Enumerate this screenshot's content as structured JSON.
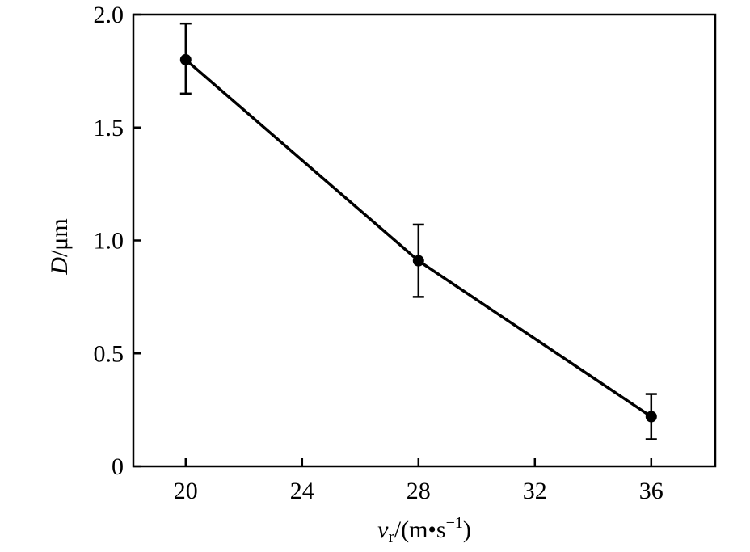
{
  "chart_data": {
    "type": "line",
    "x": [
      20,
      28,
      36
    ],
    "series": [
      {
        "values": [
          1.8,
          0.91,
          0.22
        ],
        "error_upper": [
          1.96,
          1.07,
          0.32
        ],
        "error_lower": [
          1.65,
          0.75,
          0.12
        ]
      }
    ],
    "xlabel": {
      "main": "v",
      "sub": "r",
      "unit_open": "/(m•s",
      "unit_sup": "−1",
      "unit_close": ")"
    },
    "ylabel": {
      "main": "D",
      "unit": "/μm"
    },
    "xlim": [
      18.2,
      38.2
    ],
    "ylim": [
      0,
      2.0
    ],
    "xticks": [
      20,
      24,
      28,
      32,
      36
    ],
    "xtick_labels": [
      "20",
      "24",
      "28",
      "32",
      "36"
    ],
    "yticks": [
      0,
      0.5,
      1.0,
      1.5,
      2.0
    ],
    "ytick_labels": [
      "0",
      "0.5",
      "1.0",
      "1.5",
      "2.0"
    ],
    "grid": false,
    "legend": false,
    "colors": {
      "line": "#000000",
      "marker": "#000000"
    }
  }
}
